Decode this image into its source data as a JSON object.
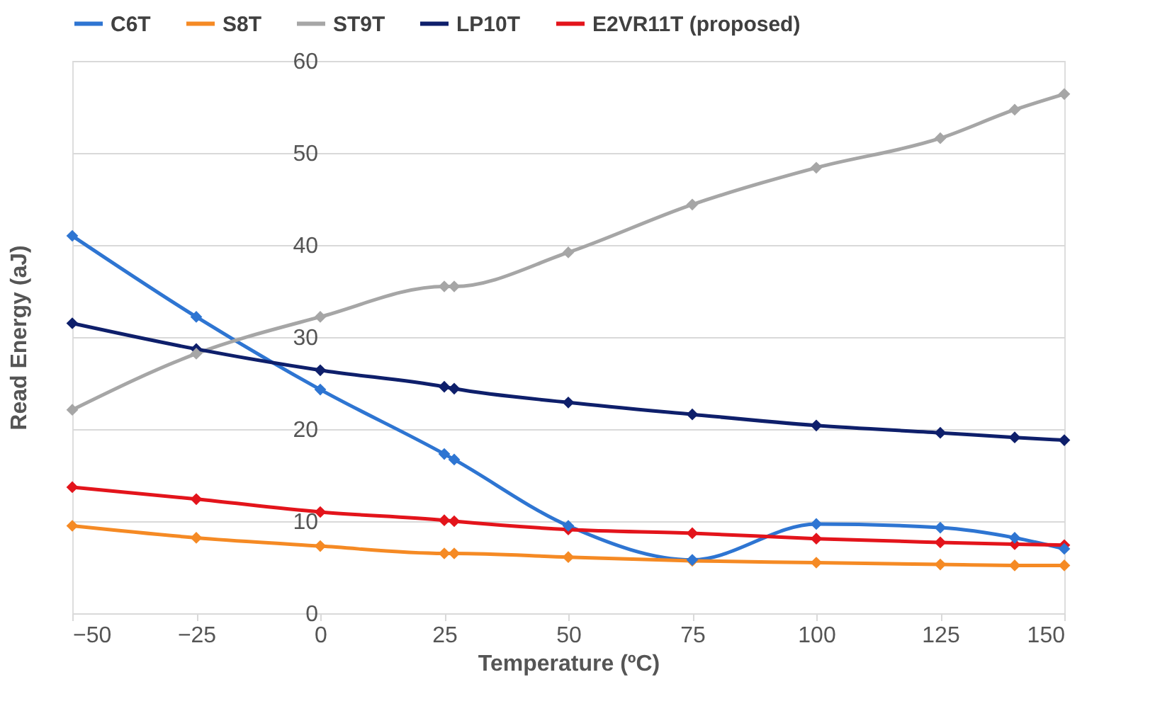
{
  "chart_data": {
    "type": "line",
    "xlabel": "Temperature (ºC)",
    "ylabel": "Read Energy (aJ)",
    "x": [
      -50,
      -25,
      0,
      25,
      27,
      50,
      75,
      100,
      125,
      140,
      150
    ],
    "series": [
      {
        "name": "C6T",
        "color": "#2e75d2",
        "values": [
          41,
          32.2,
          24.3,
          17.3,
          16.7,
          9.5,
          5.8,
          9.7,
          9.3,
          8.2,
          7
        ]
      },
      {
        "name": "S8T",
        "color": "#f58a24",
        "values": [
          9.5,
          8.2,
          7.3,
          6.5,
          6.5,
          6.1,
          5.7,
          5.5,
          5.3,
          5.2,
          5.2
        ]
      },
      {
        "name": "ST9T",
        "color": "#a6a6a6",
        "values": [
          22.1,
          28.2,
          32.2,
          35.5,
          35.5,
          39.2,
          44.4,
          48.4,
          51.6,
          54.7,
          56.4
        ]
      },
      {
        "name": "LP10T",
        "color": "#0e1f6b",
        "values": [
          31.5,
          28.7,
          26.4,
          24.6,
          24.4,
          22.9,
          21.6,
          20.4,
          19.6,
          19.1,
          18.8
        ]
      },
      {
        "name": "E2VR11T (proposed)",
        "color": "#e3141b",
        "values": [
          13.7,
          12.4,
          11.0,
          10.1,
          10.0,
          9.1,
          8.7,
          8.1,
          7.7,
          7.5,
          7.4
        ]
      }
    ],
    "xlim": [
      -50,
      150
    ],
    "xticks": [
      {
        "value": -50,
        "label": "−50"
      },
      {
        "value": -25,
        "label": "−25"
      },
      0,
      25,
      50,
      75,
      100,
      125,
      150
    ],
    "ylim": [
      0,
      60
    ],
    "yticks": [
      0,
      10,
      20,
      30,
      40,
      50,
      60
    ],
    "grid": "y",
    "legend": "top",
    "marker": "diamond",
    "line_style": "solid"
  }
}
